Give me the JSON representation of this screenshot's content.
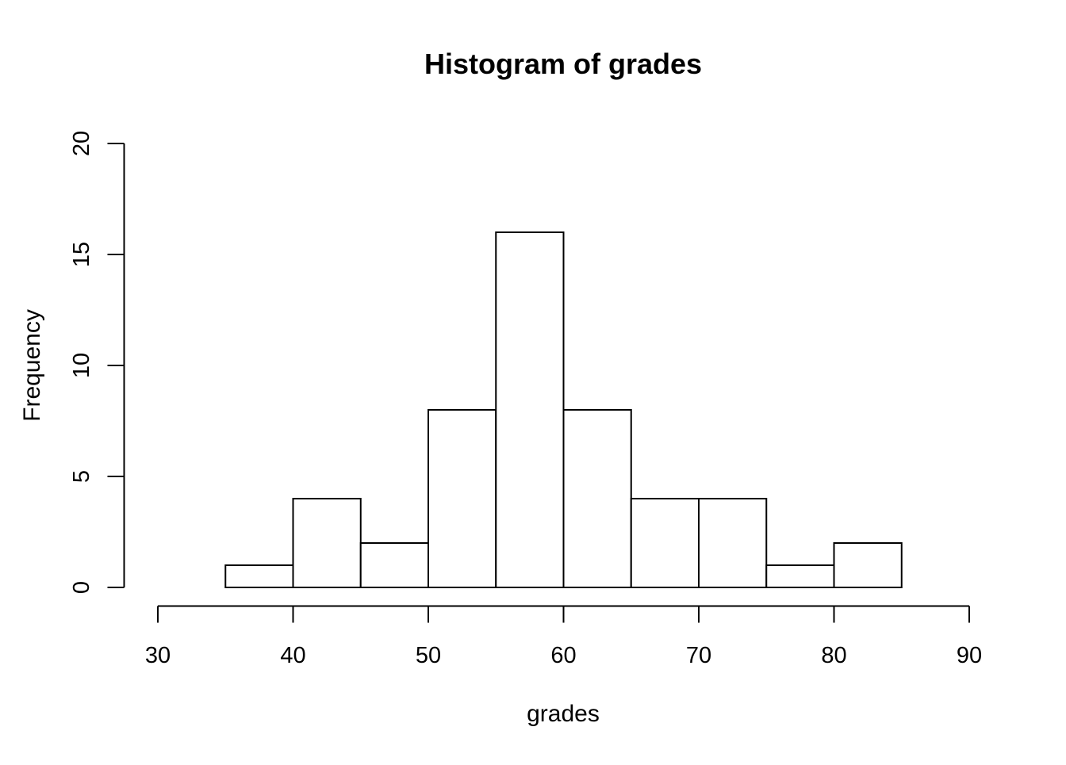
{
  "figure": {
    "background": "#ffffff"
  },
  "chart_data": {
    "type": "bar",
    "chart_kind": "histogram",
    "title": "Histogram of grades",
    "xlabel": "grades",
    "ylabel": "Frequency",
    "bin_width": 5,
    "bin_edges": [
      35,
      40,
      45,
      50,
      55,
      60,
      65,
      70,
      75,
      80,
      85
    ],
    "values": [
      1,
      4,
      2,
      8,
      16,
      8,
      4,
      4,
      1,
      2
    ],
    "categories": [
      "35-40",
      "40-45",
      "45-50",
      "50-55",
      "55-60",
      "60-65",
      "65-70",
      "70-75",
      "75-80",
      "80-85"
    ],
    "x_ticks": [
      30,
      40,
      50,
      60,
      70,
      80,
      90
    ],
    "y_ticks": [
      0,
      5,
      10,
      15,
      20
    ],
    "xlim": [
      30,
      90
    ],
    "ylim": [
      0,
      20
    ],
    "grid": false,
    "legend_position": "none",
    "colors": {
      "bar_fill": "#ffffff",
      "bar_stroke": "#000000",
      "axis": "#000000",
      "text": "#000000",
      "background": "#ffffff"
    }
  }
}
